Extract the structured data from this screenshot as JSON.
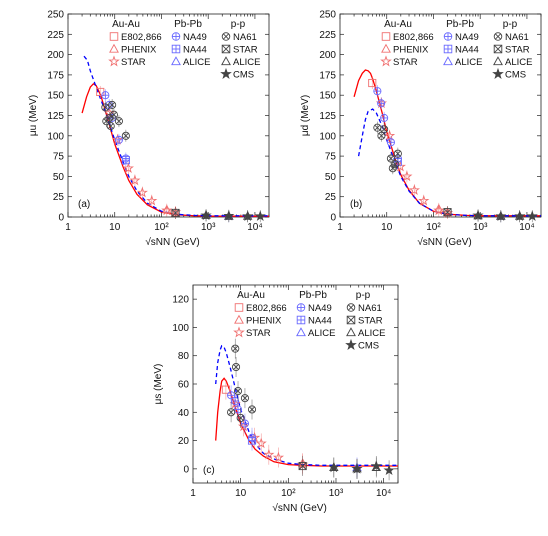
{
  "chart_data": [
    {
      "type": "scatter",
      "panel_label": "(a)",
      "ylabel": "μu (MeV)",
      "xlabel": "√sNN (GeV)",
      "xlog": true,
      "xlim": [
        1,
        20000
      ],
      "ylim": [
        0,
        250
      ],
      "xtick_labels": [
        "1",
        "10",
        "10²",
        "10³",
        "10⁴"
      ],
      "yticks": [
        0,
        25,
        50,
        75,
        100,
        125,
        150,
        175,
        200,
        225,
        250
      ],
      "legend": {
        "columns": [
          {
            "header": "Au-Au",
            "entries": [
              {
                "label": "E802,866",
                "marker": "square",
                "color": "#f07070"
              },
              {
                "label": "PHENIX",
                "marker": "triangle",
                "color": "#f07070"
              },
              {
                "label": "STAR",
                "marker": "star",
                "color": "#f07070"
              }
            ]
          },
          {
            "header": "Pb-Pb",
            "entries": [
              {
                "label": "NA49",
                "marker": "circle-plus",
                "color": "#6a6aff"
              },
              {
                "label": "NA44",
                "marker": "square-plus",
                "color": "#6a6aff"
              },
              {
                "label": "ALICE",
                "marker": "triangle",
                "color": "#6a6aff"
              }
            ]
          },
          {
            "header": "p-p",
            "entries": [
              {
                "label": "NA61",
                "marker": "circle-x",
                "color": "#444444"
              },
              {
                "label": "STAR",
                "marker": "square-x",
                "color": "#444444"
              },
              {
                "label": "ALICE",
                "marker": "triangle",
                "color": "#444444"
              },
              {
                "label": "CMS",
                "marker": "star-filled",
                "color": "#444444"
              }
            ]
          }
        ]
      },
      "curves": [
        {
          "style": "solid",
          "color": "#ff0000",
          "x": [
            2,
            2.5,
            3,
            3.5,
            4,
            5,
            6,
            8,
            10,
            15,
            20,
            30,
            50,
            100,
            200,
            500,
            1000,
            10000,
            20000
          ],
          "y": [
            128,
            148,
            160,
            164,
            162,
            150,
            135,
            110,
            90,
            62,
            45,
            28,
            15,
            6,
            3,
            1.5,
            1,
            1,
            1
          ]
        },
        {
          "style": "dashed",
          "color": "#0000ff",
          "x": [
            2.2,
            2.6,
            3,
            4,
            5,
            6,
            8,
            10,
            15,
            20,
            30,
            50,
            100,
            200,
            500,
            1000,
            10000,
            20000
          ],
          "y": [
            198,
            193,
            180,
            160,
            145,
            133,
            112,
            95,
            68,
            50,
            32,
            17,
            7,
            3.5,
            2,
            1.5,
            1.5,
            1.5
          ]
        }
      ],
      "series": [
        {
          "name": "E802,866",
          "marker": "square",
          "color": "#f07070",
          "x": [
            4.9
          ],
          "y": [
            154
          ]
        },
        {
          "name": "PHENIX",
          "marker": "triangle",
          "color": "#f07070",
          "x": [
            130,
            200
          ],
          "y": [
            9,
            5
          ]
        },
        {
          "name": "STAR (Au-Au)",
          "marker": "star",
          "color": "#f07070",
          "x": [
            7.7,
            11.5,
            19.6,
            27,
            39,
            62,
            130,
            200
          ],
          "y": [
            128,
            95,
            60,
            45,
            30,
            20,
            8,
            6
          ]
        },
        {
          "name": "NA49",
          "marker": "circle-plus",
          "color": "#6a6aff",
          "x": [
            6.3,
            7.6,
            8.8,
            12.3,
            17.3
          ],
          "y": [
            150,
            138,
            122,
            95,
            72
          ]
        },
        {
          "name": "NA44",
          "marker": "square-plus",
          "color": "#6a6aff",
          "x": [
            17.3
          ],
          "y": [
            70
          ]
        },
        {
          "name": "ALICE (Pb-Pb)",
          "marker": "triangle",
          "color": "#6a6aff",
          "x": [
            2760
          ],
          "y": [
            1
          ]
        },
        {
          "name": "NA61",
          "marker": "circle-x",
          "color": "#444444",
          "x": [
            6.3,
            7.7,
            8.8,
            12.3,
            17.3,
            6.6,
            8.2,
            9.6
          ],
          "y": [
            135,
            122,
            138,
            118,
            100,
            118,
            112,
            126
          ]
        },
        {
          "name": "STAR (p-p)",
          "marker": "square-x",
          "color": "#444444",
          "x": [
            200
          ],
          "y": [
            5
          ]
        },
        {
          "name": "ALICE (p-p)",
          "marker": "triangle",
          "color": "#444444",
          "x": [
            900,
            2760,
            7000
          ],
          "y": [
            2,
            1,
            1
          ]
        },
        {
          "name": "CMS",
          "marker": "star-filled",
          "color": "#444444",
          "x": [
            900,
            2760,
            7000,
            13000
          ],
          "y": [
            2,
            1.5,
            1,
            1
          ]
        }
      ]
    },
    {
      "type": "scatter",
      "panel_label": "(b)",
      "ylabel": "μd (MeV)",
      "xlabel": "√sNN (GeV)",
      "xlog": true,
      "xlim": [
        1,
        20000
      ],
      "ylim": [
        0,
        250
      ],
      "xtick_labels": [
        "1",
        "10",
        "10²",
        "10³",
        "10⁴"
      ],
      "yticks": [
        0,
        25,
        50,
        75,
        100,
        125,
        150,
        175,
        200,
        225,
        250
      ],
      "legend": {
        "columns": [
          {
            "header": "Au-Au",
            "entries": [
              {
                "label": "E802,866",
                "marker": "square",
                "color": "#f07070"
              },
              {
                "label": "PHENIX",
                "marker": "triangle",
                "color": "#f07070"
              },
              {
                "label": "STAR",
                "marker": "star",
                "color": "#f07070"
              }
            ]
          },
          {
            "header": "Pb-Pb",
            "entries": [
              {
                "label": "NA49",
                "marker": "circle-plus",
                "color": "#6a6aff"
              },
              {
                "label": "NA44",
                "marker": "square-plus",
                "color": "#6a6aff"
              },
              {
                "label": "ALICE",
                "marker": "triangle",
                "color": "#6a6aff"
              }
            ]
          },
          {
            "header": "p-p",
            "entries": [
              {
                "label": "NA61",
                "marker": "circle-x",
                "color": "#444444"
              },
              {
                "label": "STAR",
                "marker": "square-x",
                "color": "#444444"
              },
              {
                "label": "ALICE",
                "marker": "triangle",
                "color": "#444444"
              },
              {
                "label": "CMS",
                "marker": "star-filled",
                "color": "#444444"
              }
            ]
          }
        ]
      },
      "curves": [
        {
          "style": "solid",
          "color": "#ff0000",
          "x": [
            2,
            2.5,
            3,
            3.5,
            4,
            4.5,
            5,
            6,
            8,
            10,
            15,
            20,
            30,
            50,
            100,
            200,
            500,
            1000,
            10000,
            20000
          ],
          "y": [
            148,
            168,
            177,
            181,
            180,
            177,
            170,
            155,
            128,
            105,
            72,
            52,
            33,
            17,
            7,
            3.5,
            2,
            1.5,
            1.5,
            1.5
          ]
        },
        {
          "style": "dashed",
          "color": "#0000ff",
          "x": [
            2.5,
            3,
            3.5,
            4,
            5,
            6,
            8,
            10,
            15,
            20,
            30,
            50,
            100,
            200,
            500,
            1000,
            10000,
            20000
          ],
          "y": [
            75,
            100,
            120,
            130,
            133,
            128,
            112,
            95,
            68,
            50,
            32,
            17,
            7,
            3.5,
            2,
            1.5,
            1.5,
            1.5
          ]
        }
      ],
      "series": [
        {
          "name": "E802,866",
          "marker": "square",
          "color": "#f07070",
          "x": [
            4.9
          ],
          "y": [
            165
          ]
        },
        {
          "name": "PHENIX",
          "marker": "triangle",
          "color": "#f07070",
          "x": [
            130,
            200
          ],
          "y": [
            10,
            6
          ]
        },
        {
          "name": "STAR (Au-Au)",
          "marker": "star",
          "color": "#f07070",
          "x": [
            7.7,
            11.5,
            19.6,
            27,
            39,
            62,
            130,
            200
          ],
          "y": [
            140,
            100,
            62,
            50,
            33,
            20,
            8,
            5
          ]
        },
        {
          "name": "NA49",
          "marker": "circle-plus",
          "color": "#6a6aff",
          "x": [
            6.3,
            7.6,
            8.8,
            12.3,
            17.3
          ],
          "y": [
            155,
            140,
            122,
            92,
            72
          ]
        },
        {
          "name": "NA44",
          "marker": "square-plus",
          "color": "#6a6aff",
          "x": [
            17.3
          ],
          "y": [
            68
          ]
        },
        {
          "name": "ALICE (Pb-Pb)",
          "marker": "triangle",
          "color": "#6a6aff",
          "x": [
            2760
          ],
          "y": [
            1
          ]
        },
        {
          "name": "NA61",
          "marker": "circle-x",
          "color": "#444444",
          "x": [
            6.3,
            7.7,
            8.8,
            12.3,
            17.3,
            13.5,
            15.2
          ],
          "y": [
            110,
            100,
            108,
            72,
            78,
            60,
            65
          ]
        },
        {
          "name": "STAR (p-p)",
          "marker": "square-x",
          "color": "#444444",
          "x": [
            200
          ],
          "y": [
            6
          ]
        },
        {
          "name": "ALICE (p-p)",
          "marker": "triangle",
          "color": "#444444",
          "x": [
            900,
            2760,
            7000
          ],
          "y": [
            1.5,
            1,
            1
          ]
        },
        {
          "name": "CMS",
          "marker": "star-filled",
          "color": "#444444",
          "x": [
            900,
            2760,
            7000,
            13000
          ],
          "y": [
            2,
            1,
            1,
            1
          ]
        }
      ]
    },
    {
      "type": "scatter",
      "panel_label": "(c)",
      "ylabel": "μs (MeV)",
      "xlabel": "√sNN (GeV)",
      "xlog": true,
      "xlim": [
        1,
        20000
      ],
      "ylim": [
        -10,
        130
      ],
      "xtick_labels": [
        "1",
        "10",
        "10²",
        "10³",
        "10⁴"
      ],
      "yticks": [
        0,
        20,
        40,
        60,
        80,
        100,
        120
      ],
      "legend": {
        "columns": [
          {
            "header": "Au-Au",
            "entries": [
              {
                "label": "E802,866",
                "marker": "square",
                "color": "#f07070"
              },
              {
                "label": "PHENIX",
                "marker": "triangle",
                "color": "#f07070"
              },
              {
                "label": "STAR",
                "marker": "star",
                "color": "#f07070"
              }
            ]
          },
          {
            "header": "Pb-Pb",
            "entries": [
              {
                "label": "NA49",
                "marker": "circle-plus",
                "color": "#6a6aff"
              },
              {
                "label": "NA44",
                "marker": "square-plus",
                "color": "#6a6aff"
              },
              {
                "label": "ALICE",
                "marker": "triangle",
                "color": "#6a6aff"
              }
            ]
          },
          {
            "header": "p-p",
            "entries": [
              {
                "label": "NA61",
                "marker": "circle-x",
                "color": "#444444"
              },
              {
                "label": "STAR",
                "marker": "square-x",
                "color": "#444444"
              },
              {
                "label": "ALICE",
                "marker": "triangle",
                "color": "#444444"
              },
              {
                "label": "CMS",
                "marker": "star-filled",
                "color": "#444444"
              }
            ]
          }
        ]
      },
      "curves": [
        {
          "style": "solid",
          "color": "#ff0000",
          "x": [
            3,
            3.3,
            3.7,
            4,
            4.5,
            5,
            6,
            8,
            10,
            15,
            20,
            30,
            50,
            100,
            200,
            500,
            1000,
            10000,
            20000
          ],
          "y": [
            20,
            40,
            55,
            62,
            64,
            62,
            55,
            42,
            32,
            20,
            14,
            9,
            5,
            3,
            2.5,
            2,
            2,
            2,
            2
          ]
        },
        {
          "style": "dashed",
          "color": "#0000ff",
          "x": [
            3,
            3.3,
            3.7,
            4,
            4.5,
            5,
            6,
            8,
            10,
            15,
            20,
            30,
            50,
            100,
            200,
            500,
            1000,
            10000,
            20000
          ],
          "y": [
            60,
            75,
            84,
            87,
            86,
            82,
            72,
            55,
            42,
            26,
            18,
            11,
            7,
            4,
            3,
            2.5,
            2.5,
            2.5,
            2.5
          ]
        }
      ],
      "series": [
        {
          "name": "E802,866",
          "marker": "square",
          "color": "#f07070",
          "x": [
            4.9
          ],
          "y": [
            56
          ]
        },
        {
          "name": "PHENIX",
          "marker": "triangle",
          "color": "#f07070",
          "x": [
            200
          ],
          "y": [
            4
          ]
        },
        {
          "name": "STAR (Au-Au)",
          "marker": "star",
          "color": "#f07070",
          "x": [
            7.7,
            11.5,
            19.6,
            27,
            39,
            62,
            200
          ],
          "y": [
            46,
            30,
            22,
            18,
            10,
            8,
            3
          ]
        },
        {
          "name": "NA49",
          "marker": "circle-plus",
          "color": "#6a6aff",
          "x": [
            6.3,
            7.6,
            8.8,
            12.3,
            17.3
          ],
          "y": [
            52,
            48,
            42,
            32,
            22
          ]
        },
        {
          "name": "NA44",
          "marker": "square-plus",
          "color": "#6a6aff",
          "x": [
            17.3
          ],
          "y": [
            20
          ]
        },
        {
          "name": "ALICE (Pb-Pb)",
          "marker": "triangle",
          "color": "#6a6aff",
          "x": [
            2760
          ],
          "y": [
            1
          ]
        },
        {
          "name": "NA61",
          "marker": "circle-x",
          "color": "#444444",
          "x": [
            6.3,
            7.7,
            8.8,
            12.3,
            17.3,
            8,
            10
          ],
          "y": [
            40,
            85,
            55,
            50,
            42,
            72,
            36
          ]
        },
        {
          "name": "STAR (p-p)",
          "marker": "square-x",
          "color": "#444444",
          "x": [
            200
          ],
          "y": [
            2
          ]
        },
        {
          "name": "ALICE (p-p)",
          "marker": "triangle",
          "color": "#444444",
          "x": [
            900,
            2760,
            7000
          ],
          "y": [
            1,
            0,
            1
          ]
        },
        {
          "name": "CMS",
          "marker": "star-filled",
          "color": "#444444",
          "x": [
            900,
            2760,
            7000,
            13000
          ],
          "y": [
            1,
            0,
            2,
            -1
          ]
        }
      ]
    }
  ]
}
